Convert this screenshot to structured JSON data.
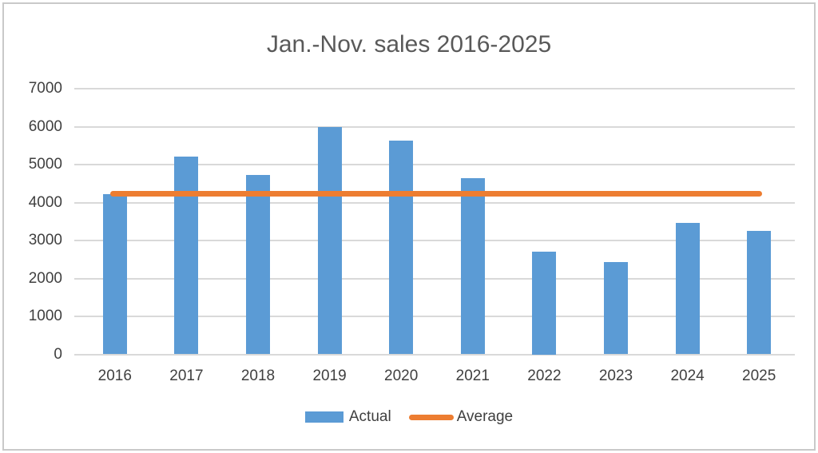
{
  "page": {
    "background": "#ffffff",
    "border_color": "#c9c9c9"
  },
  "chart_data": {
    "type": "bar",
    "title": "Jan.-Nov. sales 2016-2025",
    "categories": [
      "2016",
      "2017",
      "2018",
      "2019",
      "2020",
      "2021",
      "2022",
      "2023",
      "2024",
      "2025"
    ],
    "series": [
      {
        "name": "Actual",
        "type": "bar",
        "color": "#5B9BD5",
        "values": [
          4230,
          5210,
          4730,
          5980,
          5630,
          4640,
          2700,
          2440,
          3470,
          3260
        ]
      },
      {
        "name": "Average",
        "type": "line",
        "color": "#ED7D31",
        "value": 4230
      }
    ],
    "xlabel": "",
    "ylabel": "",
    "ylim": [
      0,
      7000
    ],
    "yticks": [
      0,
      1000,
      2000,
      3000,
      4000,
      5000,
      6000,
      7000
    ],
    "grid": true,
    "gridline_color": "#d9d9d9",
    "axis_text_color": "#404040",
    "title_color": "#595959",
    "legend_position": "bottom"
  }
}
